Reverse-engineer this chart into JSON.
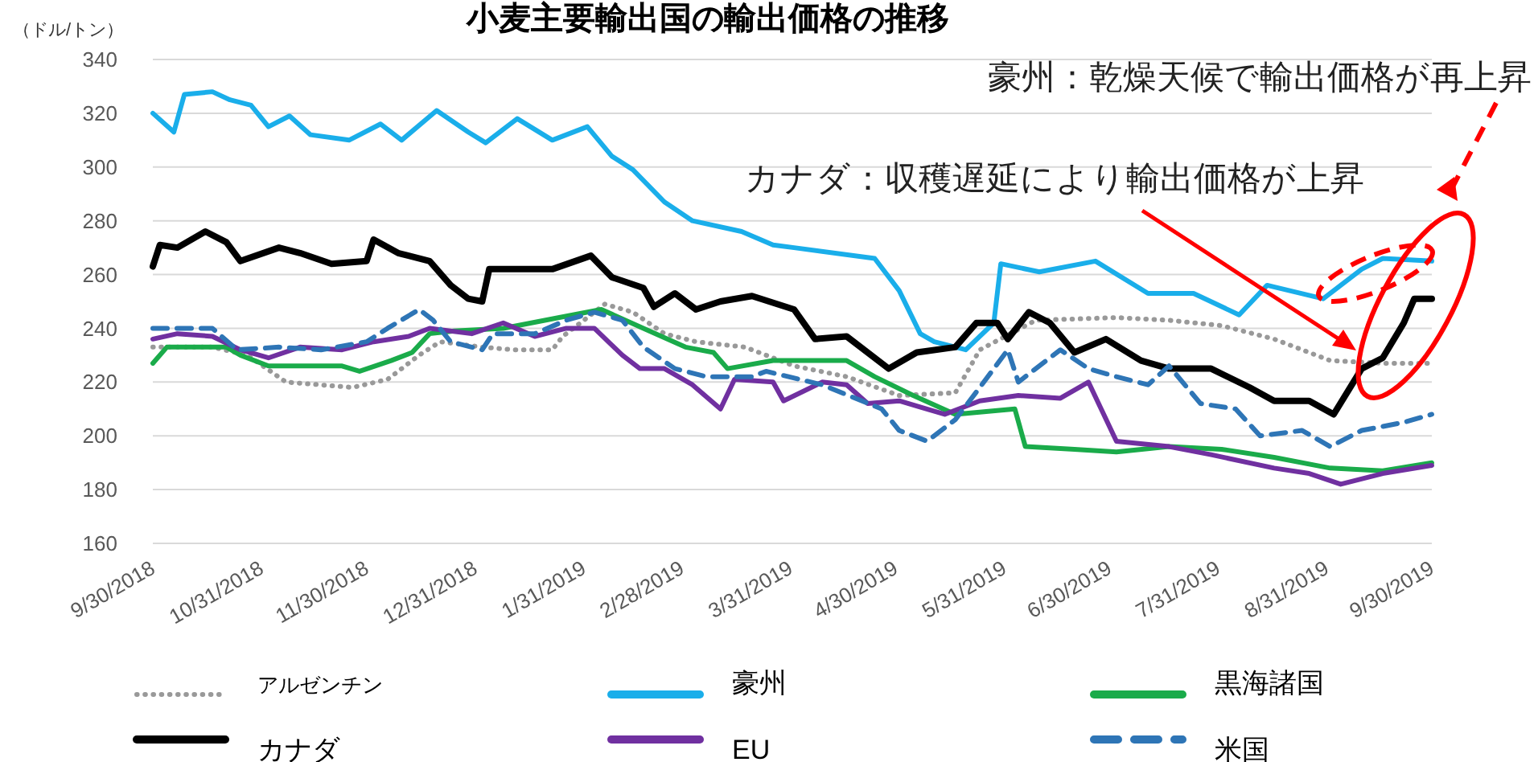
{
  "chart_data": {
    "type": "line",
    "title": "小麦主要輸出国の輸出価格の推移",
    "ylabel": "（ドル/トン）",
    "xlim": [
      "2018-09-30",
      "2019-09-30"
    ],
    "xticks": [
      {
        "value": "2018-09-30",
        "label": "9/30/2018"
      },
      {
        "value": "2018-10-31",
        "label": "10/31/2018"
      },
      {
        "value": "2018-11-30",
        "label": "11/30/2018"
      },
      {
        "value": "2018-12-31",
        "label": "12/31/2018"
      },
      {
        "value": "2019-01-31",
        "label": "1/31/2019"
      },
      {
        "value": "2019-02-28",
        "label": "2/28/2019"
      },
      {
        "value": "2019-03-31",
        "label": "3/31/2019"
      },
      {
        "value": "2019-04-30",
        "label": "4/30/2019"
      },
      {
        "value": "2019-05-31",
        "label": "5/31/2019"
      },
      {
        "value": "2019-06-30",
        "label": "6/30/2019"
      },
      {
        "value": "2019-07-31",
        "label": "7/31/2019"
      },
      {
        "value": "2019-08-31",
        "label": "8/31/2019"
      },
      {
        "value": "2019-09-30",
        "label": "9/30/2019"
      }
    ],
    "ylim": [
      160,
      340
    ],
    "yticks": [
      160,
      180,
      200,
      220,
      240,
      260,
      280,
      300,
      320,
      340
    ],
    "grid": "y",
    "legend": "bottom",
    "series": [
      {
        "name": "アルゼンチン",
        "color": "#999999",
        "line_style": "dotted",
        "x": [
          "2018-09-30",
          "2018-10-17",
          "2018-10-27",
          "2018-11-07",
          "2018-11-26",
          "2018-12-06",
          "2018-12-15",
          "2018-12-21",
          "2019-01-02",
          "2019-01-11",
          "2019-01-22",
          "2019-01-25",
          "2019-02-06",
          "2019-02-14",
          "2019-02-23",
          "2019-03-04",
          "2019-03-18",
          "2019-04-01",
          "2019-04-16",
          "2019-05-01",
          "2019-05-17",
          "2019-05-24",
          "2019-06-09",
          "2019-07-02",
          "2019-07-17",
          "2019-08-01",
          "2019-08-16",
          "2019-09-01",
          "2019-09-16",
          "2019-09-30"
        ],
        "values": [
          233,
          233,
          230,
          220,
          218,
          221,
          230,
          235,
          233,
          232,
          232,
          237,
          249,
          246,
          238,
          235,
          233,
          226,
          222,
          215,
          216,
          232,
          243,
          244,
          243,
          241,
          236,
          228,
          227,
          227
        ]
      },
      {
        "name": "豪州",
        "color": "#1aaeea",
        "line_style": "solid",
        "x": [
          "2018-09-30",
          "2018-10-06",
          "2018-10-09",
          "2018-10-17",
          "2018-10-22",
          "2018-10-28",
          "2018-11-02",
          "2018-11-08",
          "2018-11-14",
          "2018-11-25",
          "2018-12-04",
          "2018-12-10",
          "2018-12-20",
          "2018-12-29",
          "2019-01-03",
          "2019-01-12",
          "2019-01-22",
          "2019-02-01",
          "2019-02-08",
          "2019-02-14",
          "2019-02-23",
          "2019-03-03",
          "2019-03-17",
          "2019-03-26",
          "2019-04-01",
          "2019-04-24",
          "2019-05-01",
          "2019-05-07",
          "2019-05-11",
          "2019-05-20",
          "2019-05-28",
          "2019-05-30",
          "2019-06-10",
          "2019-06-26",
          "2019-07-11",
          "2019-07-24",
          "2019-08-06",
          "2019-08-14",
          "2019-08-30",
          "2019-09-10",
          "2019-09-16",
          "2019-09-30"
        ],
        "values": [
          320,
          313,
          327,
          328,
          325,
          323,
          315,
          319,
          312,
          310,
          316,
          310,
          321,
          313,
          309,
          318,
          310,
          315,
          304,
          299,
          287,
          280,
          276,
          271,
          270,
          266,
          254,
          238,
          235,
          232,
          242,
          264,
          261,
          265,
          253,
          253,
          245,
          256,
          251,
          262,
          266,
          265
        ]
      },
      {
        "name": "黒海諸国",
        "color": "#1aab4a",
        "line_style": "solid",
        "x": [
          "2018-09-30",
          "2018-10-04",
          "2018-10-21",
          "2018-10-25",
          "2018-11-02",
          "2018-11-23",
          "2018-11-28",
          "2018-12-07",
          "2018-12-13",
          "2018-12-18",
          "2018-12-25",
          "2019-01-08",
          "2019-01-24",
          "2019-02-05",
          "2019-02-17",
          "2019-03-01",
          "2019-03-09",
          "2019-03-13",
          "2019-03-26",
          "2019-04-16",
          "2019-04-24",
          "2019-05-05",
          "2019-05-17",
          "2019-06-03",
          "2019-06-06",
          "2019-06-20",
          "2019-07-02",
          "2019-07-17",
          "2019-08-01",
          "2019-08-16",
          "2019-09-01",
          "2019-09-16",
          "2019-09-30"
        ],
        "values": [
          227,
          233,
          233,
          230,
          226,
          226,
          224,
          228,
          231,
          238,
          239,
          240,
          244,
          247,
          240,
          233,
          231,
          225,
          228,
          228,
          222,
          215,
          208,
          210,
          196,
          195,
          194,
          196,
          195,
          192,
          188,
          187,
          190
        ]
      },
      {
        "name": "カナダ",
        "color": "#000000",
        "line_style": "solid",
        "x": [
          "2018-09-30",
          "2018-10-02",
          "2018-10-07",
          "2018-10-15",
          "2018-10-21",
          "2018-10-25",
          "2018-11-05",
          "2018-11-11",
          "2018-11-20",
          "2018-11-30",
          "2018-12-02",
          "2018-12-09",
          "2018-12-18",
          "2018-12-24",
          "2018-12-29",
          "2019-01-02",
          "2019-01-04",
          "2019-01-11",
          "2019-01-22",
          "2019-02-02",
          "2019-02-08",
          "2019-02-17",
          "2019-02-20",
          "2019-02-26",
          "2019-03-04",
          "2019-03-11",
          "2019-03-20",
          "2019-04-01",
          "2019-04-07",
          "2019-04-16",
          "2019-04-28",
          "2019-05-06",
          "2019-05-17",
          "2019-05-23",
          "2019-05-29",
          "2019-06-01",
          "2019-06-07",
          "2019-06-13",
          "2019-06-20",
          "2019-06-29",
          "2019-07-09",
          "2019-07-17",
          "2019-07-29",
          "2019-08-09",
          "2019-08-16",
          "2019-08-26",
          "2019-09-02",
          "2019-09-10",
          "2019-09-16",
          "2019-09-22",
          "2019-09-25",
          "2019-09-30"
        ],
        "values": [
          263,
          271,
          270,
          276,
          272,
          265,
          270,
          268,
          264,
          265,
          273,
          268,
          265,
          256,
          251,
          250,
          262,
          262,
          262,
          267,
          259,
          255,
          248,
          253,
          247,
          250,
          252,
          247,
          236,
          237,
          225,
          231,
          233,
          242,
          242,
          236,
          246,
          242,
          231,
          236,
          228,
          225,
          225,
          218,
          213,
          213,
          208,
          225,
          229,
          242,
          251,
          251
        ]
      },
      {
        "name": "EU",
        "color": "#7030a0",
        "line_style": "solid",
        "x": [
          "2018-09-30",
          "2018-10-07",
          "2018-10-17",
          "2018-10-25",
          "2018-11-02",
          "2018-11-11",
          "2018-11-23",
          "2018-12-02",
          "2018-12-12",
          "2018-12-18",
          "2018-12-30",
          "2019-01-08",
          "2019-01-17",
          "2019-01-26",
          "2019-02-03",
          "2019-02-11",
          "2019-02-16",
          "2019-02-23",
          "2019-03-03",
          "2019-03-11",
          "2019-03-15",
          "2019-03-26",
          "2019-03-29",
          "2019-04-09",
          "2019-04-16",
          "2019-04-22",
          "2019-05-01",
          "2019-05-14",
          "2019-05-24",
          "2019-06-04",
          "2019-06-16",
          "2019-06-24",
          "2019-07-02",
          "2019-07-17",
          "2019-07-29",
          "2019-08-16",
          "2019-08-26",
          "2019-09-04",
          "2019-09-16",
          "2019-09-30"
        ],
        "values": [
          236,
          238,
          237,
          232,
          229,
          233,
          232,
          235,
          237,
          240,
          238,
          242,
          237,
          240,
          240,
          230,
          225,
          225,
          219,
          210,
          221,
          220,
          213,
          220,
          219,
          212,
          213,
          208,
          213,
          215,
          214,
          220,
          198,
          196,
          193,
          188,
          186,
          182,
          186,
          189
        ]
      },
      {
        "name": "米国",
        "color": "#2e75b6",
        "line_style": "dashed",
        "x": [
          "2018-09-30",
          "2018-10-07",
          "2018-10-17",
          "2018-10-24",
          "2018-11-05",
          "2018-11-17",
          "2018-11-30",
          "2018-12-06",
          "2018-12-15",
          "2018-12-19",
          "2018-12-24",
          "2019-01-02",
          "2019-01-05",
          "2019-01-17",
          "2019-01-26",
          "2019-02-03",
          "2019-02-11",
          "2019-02-17",
          "2019-02-26",
          "2019-03-07",
          "2019-03-20",
          "2019-03-24",
          "2019-04-09",
          "2019-04-26",
          "2019-05-01",
          "2019-05-09",
          "2019-05-17",
          "2019-05-24",
          "2019-06-01",
          "2019-06-04",
          "2019-06-16",
          "2019-06-24",
          "2019-07-02",
          "2019-07-11",
          "2019-07-17",
          "2019-07-26",
          "2019-08-05",
          "2019-08-12",
          "2019-08-24",
          "2019-09-01",
          "2019-09-10",
          "2019-09-22",
          "2019-09-30"
        ],
        "values": [
          240,
          240,
          240,
          232,
          233,
          232,
          235,
          240,
          247,
          243,
          235,
          232,
          238,
          238,
          243,
          246,
          243,
          233,
          225,
          222,
          222,
          224,
          219,
          210,
          202,
          198,
          206,
          218,
          232,
          220,
          232,
          225,
          222,
          219,
          226,
          212,
          210,
          200,
          202,
          196,
          202,
          205,
          208
        ]
      }
    ],
    "annotations": [
      "豪州：乾燥天候で輸出価格が再上昇",
      "カナダ：収穫遅延により輸出価格が上昇"
    ]
  }
}
